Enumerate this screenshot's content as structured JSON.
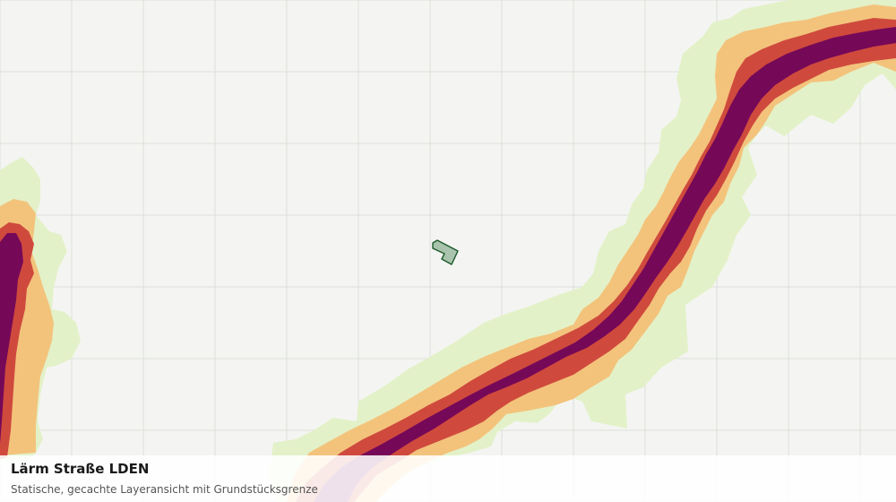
{
  "map": {
    "layer": "Lärm Straße LDEN",
    "colors": {
      "background": "#f4f5f2",
      "grid": "#dddedb",
      "band_outer": "#e3f1c8",
      "band_mid": "#f3c37c",
      "band_inner": "#cf4a3d",
      "band_core": "#760858",
      "parcel_fill": "#a9c3ad",
      "parcel_stroke": "#1e5a2c"
    },
    "parcel": {
      "label": "Grundstücksgrenze"
    }
  },
  "caption": {
    "title": "Lärm Straße LDEN",
    "subtitle": "Statische, gecachte Layeransicht mit Grundstücksgrenze"
  }
}
